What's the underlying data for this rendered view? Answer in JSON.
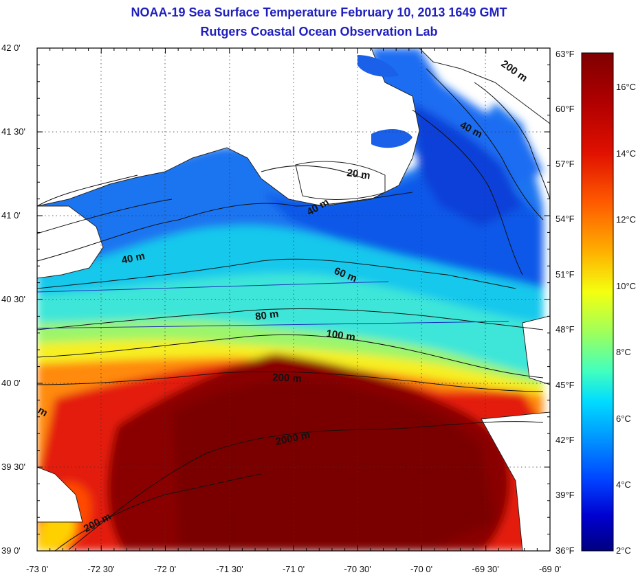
{
  "title": "NOAA-19 Sea Surface Temperature February 10, 2013 1649 GMT",
  "subtitle": "Rutgers Coastal Ocean Observation Lab",
  "axes": {
    "lat_labels": [
      "42 0'",
      "41 30'",
      "41 0'",
      "40 30'",
      "40 0'",
      "39 30'",
      "39 0'"
    ],
    "lon_labels": [
      "-73 0'",
      "-72 30'",
      "-72 0'",
      "-71 30'",
      "-71 0'",
      "-70 30'",
      "-70 0'",
      "-69 30'",
      "-69 0'"
    ]
  },
  "colorbar": {
    "fahrenheit": [
      "63°F",
      "60°F",
      "57°F",
      "54°F",
      "51°F",
      "48°F",
      "45°F",
      "42°F",
      "39°F",
      "36°F"
    ],
    "celsius": [
      "16°C",
      "14°C",
      "12°C",
      "10°C",
      "8°C",
      "6°C",
      "4°C",
      "2°C"
    ],
    "colors": [
      "#7f0000",
      "#c30000",
      "#ff2b00",
      "#ff8a00",
      "#ffe100",
      "#b6ff4a",
      "#4affb0",
      "#00d7ff",
      "#0094ff",
      "#0040ff",
      "#0000c8",
      "#00007f"
    ]
  },
  "isobaths": [
    "200 m",
    "40 m",
    "20 m",
    "40 m",
    "40 m",
    "60 m",
    "80 m",
    "100 m",
    "200 m",
    "2000 m",
    "200 m",
    "m"
  ],
  "colors": {
    "title": "#1f1fbf",
    "land": "#ffffff",
    "frame": "#000000"
  }
}
